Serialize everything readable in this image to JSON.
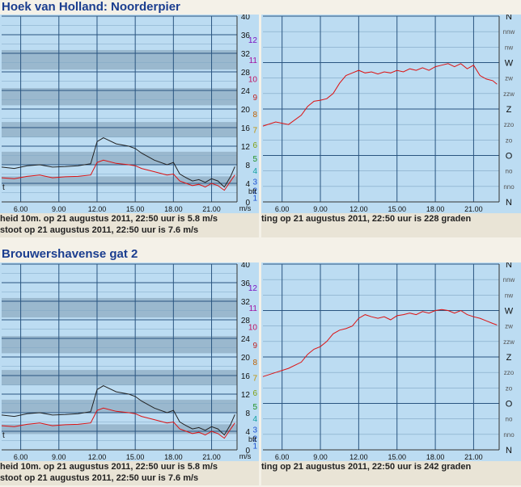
{
  "stations": [
    {
      "name": "Hoek van Holland: Noorderpier",
      "speed_chart": {
        "type": "line",
        "x_ticks": [
          "6.00",
          "9.00",
          "12.00",
          "15.00",
          "18.00",
          "21.00"
        ],
        "y_ticks_ms": [
          "40",
          "36",
          "32",
          "28",
          "24",
          "20",
          "16",
          "12",
          "8",
          "4",
          "0"
        ],
        "y_ticks_bft": [
          "12",
          "11",
          "10",
          "9",
          "8",
          "7",
          "6",
          "5",
          "4",
          "3",
          "2",
          "1"
        ],
        "unit_bft": "bft",
        "unit_ms": "m/s",
        "corner_label": "t",
        "ylim": [
          0,
          40
        ],
        "xlim": [
          4.5,
          23.0
        ],
        "bft_band_edges": [
          0.3,
          1.6,
          3.4,
          5.5,
          8.0,
          10.8,
          13.9,
          17.2,
          20.8,
          24.5,
          28.5,
          32.7
        ],
        "series": [
          {
            "color": "#222222",
            "x": [
              4.5,
              5.5,
              6.5,
              7.5,
              8.5,
              9.5,
              10.5,
              11.5,
              12.0,
              12.5,
              13.5,
              14.5,
              15.0,
              15.5,
              16.5,
              17.5,
              18.0,
              18.5,
              19.0,
              19.5,
              20.0,
              20.5,
              21.0,
              21.5,
              22.0,
              22.5,
              22.83
            ],
            "y": [
              7.5,
              7.2,
              7.8,
              8.0,
              7.5,
              7.6,
              7.8,
              8.2,
              13.0,
              13.8,
              12.5,
              12.0,
              11.5,
              10.5,
              9.0,
              8.0,
              8.5,
              6.0,
              5.2,
              4.5,
              4.8,
              4.2,
              5.0,
              4.5,
              3.2,
              5.5,
              7.6
            ]
          },
          {
            "color": "#dd1111",
            "x": [
              4.5,
              5.5,
              6.5,
              7.5,
              8.5,
              9.5,
              10.5,
              11.5,
              12.0,
              12.5,
              13.5,
              14.5,
              15.0,
              15.5,
              16.5,
              17.5,
              18.0,
              18.5,
              19.0,
              19.5,
              20.0,
              20.5,
              21.0,
              21.5,
              22.0,
              22.5,
              22.83
            ],
            "y": [
              5.2,
              5.0,
              5.5,
              5.8,
              5.2,
              5.4,
              5.5,
              5.8,
              8.5,
              9.0,
              8.3,
              8.0,
              7.8,
              7.2,
              6.5,
              5.8,
              6.0,
              4.5,
              4.0,
              3.5,
              3.8,
              3.2,
              4.0,
              3.5,
              2.5,
              4.5,
              5.8
            ]
          }
        ]
      },
      "direction_chart": {
        "type": "line",
        "x_ticks": [
          "6.00",
          "9.00",
          "12.00",
          "15.00",
          "18.00",
          "21.00"
        ],
        "y_ticks_dir": [
          "N",
          "nnw",
          "nw",
          "W",
          "zw",
          "zzw",
          "Z",
          "zzo",
          "zo",
          "O",
          "no",
          "nno",
          "N"
        ],
        "xlim": [
          4.5,
          23.0
        ],
        "ylim": [
          0,
          360
        ],
        "series": [
          {
            "color": "#dd1111",
            "x": [
              4.5,
              5.5,
              6.5,
              7.5,
              8.0,
              8.5,
              9.0,
              9.5,
              10.0,
              10.5,
              11.0,
              11.5,
              12.0,
              12.5,
              13.0,
              13.5,
              14.0,
              14.5,
              15.0,
              15.5,
              16.0,
              16.5,
              17.0,
              17.5,
              18.0,
              18.5,
              19.0,
              19.5,
              20.0,
              20.5,
              21.0,
              21.5,
              22.0,
              22.5,
              22.83
            ],
            "y": [
              147,
              155,
              150,
              168,
              185,
              195,
              197,
              200,
              210,
              230,
              245,
              250,
              255,
              250,
              252,
              248,
              252,
              250,
              255,
              252,
              258,
              255,
              260,
              255,
              262,
              265,
              268,
              262,
              268,
              258,
              265,
              245,
              238,
              235,
              228
            ]
          }
        ]
      },
      "caption_line1": "heid 10m. op 21 augustus 2011, 22:50 uur is 5.8 m/s",
      "caption_line2": "stoot op 21 augustus 2011, 22:50 uur is 7.6 m/s",
      "caption_right": "ting op 21 augustus 2011, 22:50 uur is 228 graden"
    },
    {
      "name": "Brouwershavense gat 2",
      "speed_chart": {
        "type": "line",
        "x_ticks": [
          "6.00",
          "9.00",
          "12.00",
          "15.00",
          "18.00",
          "21.00"
        ],
        "y_ticks_ms": [
          "40",
          "36",
          "32",
          "28",
          "24",
          "20",
          "16",
          "12",
          "8",
          "4",
          "0"
        ],
        "y_ticks_bft": [
          "12",
          "11",
          "10",
          "9",
          "8",
          "7",
          "6",
          "5",
          "4",
          "3",
          "2",
          "1"
        ],
        "unit_bft": "bft",
        "unit_ms": "m/s",
        "corner_label": "t",
        "ylim": [
          0,
          40
        ],
        "xlim": [
          4.5,
          23.0
        ],
        "bft_band_edges": [
          0.3,
          1.6,
          3.4,
          5.5,
          8.0,
          10.8,
          13.9,
          17.2,
          20.8,
          24.5,
          28.5,
          32.7
        ],
        "series": [
          {
            "color": "#222222",
            "x": [
              4.5,
              5.5,
              6.5,
              7.5,
              8.5,
              9.5,
              10.5,
              11.5,
              12.0,
              12.5,
              13.5,
              14.5,
              15.0,
              15.5,
              16.5,
              17.5,
              18.0,
              18.5,
              19.0,
              19.5,
              20.0,
              20.5,
              21.0,
              21.5,
              22.0,
              22.5,
              22.83
            ],
            "y": [
              7.5,
              7.2,
              7.8,
              8.0,
              7.5,
              7.6,
              7.8,
              8.2,
              13.0,
              13.8,
              12.5,
              12.0,
              11.5,
              10.5,
              9.0,
              8.0,
              8.5,
              6.0,
              5.2,
              4.5,
              4.8,
              4.2,
              5.0,
              4.5,
              3.2,
              5.5,
              7.6
            ]
          },
          {
            "color": "#dd1111",
            "x": [
              4.5,
              5.5,
              6.5,
              7.5,
              8.5,
              9.5,
              10.5,
              11.5,
              12.0,
              12.5,
              13.5,
              14.5,
              15.0,
              15.5,
              16.5,
              17.5,
              18.0,
              18.5,
              19.0,
              19.5,
              20.0,
              20.5,
              21.0,
              21.5,
              22.0,
              22.5,
              22.83
            ],
            "y": [
              5.2,
              5.0,
              5.5,
              5.8,
              5.2,
              5.4,
              5.5,
              5.8,
              8.5,
              9.0,
              8.3,
              8.0,
              7.8,
              7.2,
              6.5,
              5.8,
              6.0,
              4.5,
              4.0,
              3.5,
              3.8,
              3.2,
              4.0,
              3.5,
              2.5,
              4.5,
              5.8
            ]
          }
        ]
      },
      "direction_chart": {
        "type": "line",
        "x_ticks": [
          "6.00",
          "9.00",
          "12.00",
          "15.00",
          "18.00",
          "21.00"
        ],
        "y_ticks_dir": [
          "N",
          "nnw",
          "nw",
          "W",
          "zw",
          "zzw",
          "Z",
          "zzo",
          "zo",
          "O",
          "no",
          "nno",
          "N"
        ],
        "xlim": [
          4.5,
          23.0
        ],
        "ylim": [
          0,
          360
        ],
        "series": [
          {
            "color": "#dd1111",
            "x": [
              4.5,
              5.5,
              6.5,
              7.5,
              8.0,
              8.5,
              9.0,
              9.5,
              10.0,
              10.5,
              11.0,
              11.5,
              12.0,
              12.5,
              13.0,
              13.5,
              14.0,
              14.5,
              15.0,
              15.5,
              16.0,
              16.5,
              17.0,
              17.5,
              18.0,
              18.5,
              19.0,
              19.5,
              20.0,
              20.5,
              21.0,
              21.5,
              22.0,
              22.5,
              22.83
            ],
            "y": [
              142,
              150,
              158,
              170,
              185,
              195,
              200,
              210,
              225,
              232,
              235,
              240,
              255,
              262,
              258,
              255,
              258,
              252,
              260,
              262,
              265,
              262,
              268,
              265,
              270,
              272,
              270,
              265,
              270,
              262,
              258,
              255,
              250,
              245,
              242
            ]
          }
        ]
      },
      "caption_line1": "heid 10m. op 21 augustus 2011, 22:50 uur is 5.8 m/s",
      "caption_line2": "stoot op 21 augustus 2011, 22:50 uur is 7.6 m/s",
      "caption_right": "ting op 21 augustus 2011, 22:50 uur is 242 graden"
    }
  ],
  "colors": {
    "title": "#1a3d8f",
    "plot_light": "#bcdcf2",
    "plot_dark": "#9ab8ce",
    "grid_major": "#2a5580",
    "grid_minor": "#7fa6c4",
    "bft_palette": [
      "#1b4fd1",
      "#1b4fd1",
      "#1b4fd1",
      "#10a0a0",
      "#209020",
      "#80a010",
      "#c09000",
      "#c06000",
      "#c02020",
      "#c01060",
      "#a010a0",
      "#7a10c0"
    ],
    "dir_label": "#111111",
    "dir_minor_label": "#555555"
  }
}
